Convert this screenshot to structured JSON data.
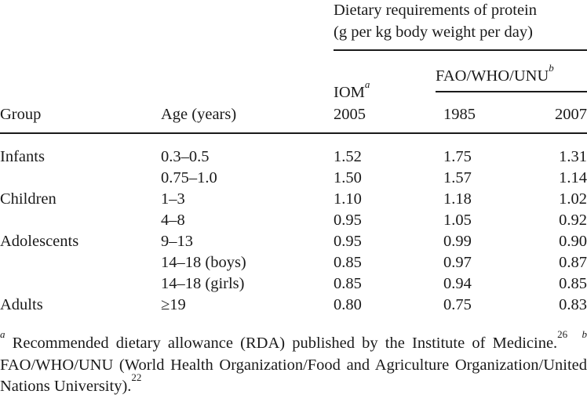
{
  "header": {
    "spanner": "Dietary requirements of protein",
    "spanner_unit": "(g per kg body weight per day)",
    "fao_group": "FAO/WHO/UNU",
    "fao_mark": "b",
    "iom_label": "IOM",
    "iom_mark": "a",
    "columns": [
      "Group",
      "Age (years)",
      "2005",
      "1985",
      "2007"
    ]
  },
  "rows": [
    [
      "Infants",
      "0.3–0.5",
      "1.52",
      "1.75",
      "1.31"
    ],
    [
      "",
      "0.75–1.0",
      "1.50",
      "1.57",
      "1.14"
    ],
    [
      "Children",
      "1–3",
      "1.10",
      "1.18",
      "1.02"
    ],
    [
      "",
      "4–8",
      "0.95",
      "1.05",
      "0.92"
    ],
    [
      "Adolescents",
      "9–13",
      "0.95",
      "0.99",
      "0.90"
    ],
    [
      "",
      "14–18 (boys)",
      "0.85",
      "0.97",
      "0.87"
    ],
    [
      "",
      "14–18 (girls)",
      "0.85",
      "0.94",
      "0.85"
    ],
    [
      "Adults",
      "≥19",
      "0.80",
      "0.75",
      "0.83"
    ]
  ],
  "footnotes": {
    "a_mark": "a",
    "a_text": "Recommended dietary allowance (RDA) published by the Institute of Medicine.",
    "a_ref": "26",
    "b_mark": "b",
    "b_text": "FAO/WHO/UNU (World Health Organization/Food and Agriculture Organization/United Nations University).",
    "b_ref": "22"
  }
}
